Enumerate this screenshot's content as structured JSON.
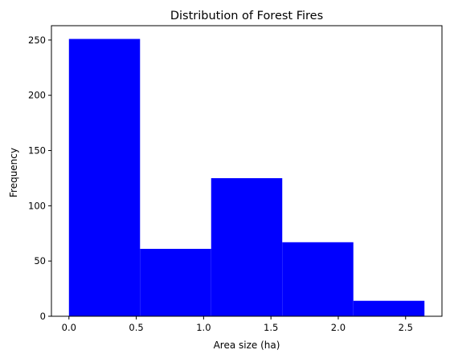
{
  "chart_data": {
    "type": "bar",
    "title": "Distribution of Forest Fires",
    "xlabel": "Area size (ha)",
    "ylabel": "Frequency",
    "bin_edges": [
      0.0,
      0.528,
      1.056,
      1.584,
      2.112,
      2.64
    ],
    "values": [
      251,
      61,
      125,
      67,
      14
    ],
    "xlim": [
      -0.13,
      2.77
    ],
    "ylim": [
      0,
      263
    ],
    "xticks": [
      0.0,
      0.5,
      1.0,
      1.5,
      2.0,
      2.5
    ],
    "xtick_labels": [
      "0.0",
      "0.5",
      "1.0",
      "1.5",
      "2.0",
      "2.5"
    ],
    "yticks": [
      0,
      50,
      100,
      150,
      200,
      250
    ],
    "ytick_labels": [
      "0",
      "50",
      "100",
      "150",
      "200",
      "250"
    ],
    "bar_color": "#0000ff",
    "grid": false,
    "legend": "none"
  }
}
